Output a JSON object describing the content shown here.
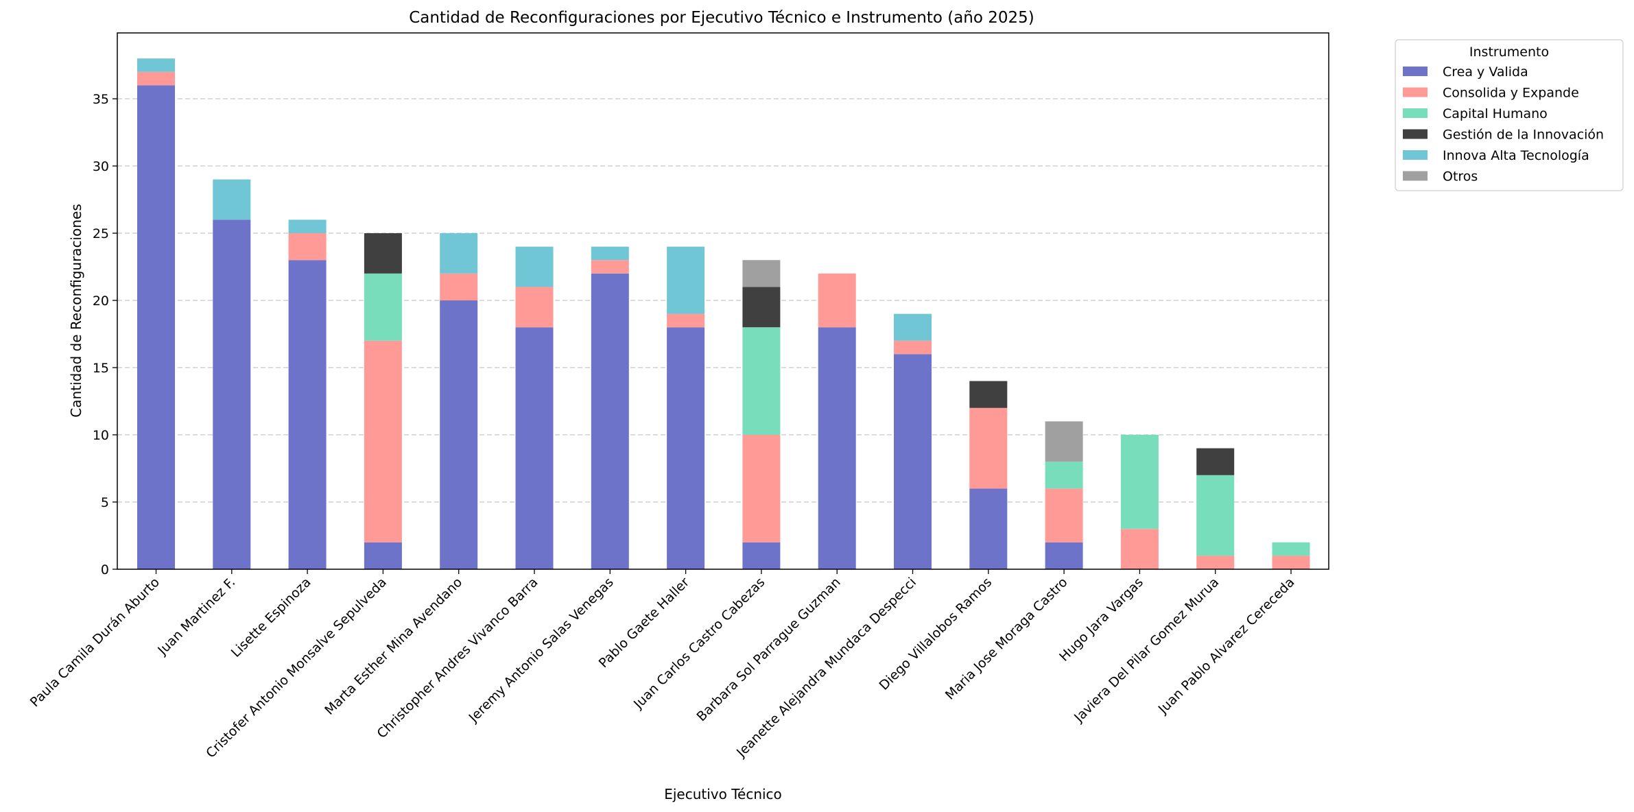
{
  "chart_data": {
    "type": "bar",
    "stacked": true,
    "title": "Cantidad de Reconfiguraciones por Ejecutivo Técnico e Instrumento (año 2025)",
    "xlabel": "Ejecutivo Técnico",
    "ylabel": "Cantidad de Reconfiguraciones",
    "ylim": [
      0,
      39.9
    ],
    "yticks": [
      0,
      5,
      10,
      15,
      20,
      25,
      30,
      35
    ],
    "grid": "y-dashed",
    "legend_title": "Instrumento",
    "legend_position": "outside-top-right",
    "categories": [
      "Paula Camila Durán Aburto",
      "Juan Martinez F.",
      "Lisette Espinoza",
      "Cristofer Antonio Monsalve Sepulveda",
      "Marta Esther Mina Avendano",
      "Christopher Andres Vivanco Barra",
      "Jeremy Antonio Salas Venegas",
      "Pablo Gaete Haller",
      "Juan Carlos Castro Cabezas",
      "Barbara Sol Parrague Guzman",
      "Jeanette Alejandra Mundaca Despecci",
      "Diego Villalobos Ramos",
      "Maria Jose Moraga Castro",
      "Hugo Jara Vargas",
      "Javiera Del Pilar Gomez Murua",
      "Juan Pablo Alvarez Cereceda"
    ],
    "series": [
      {
        "name": "Crea y Valida",
        "color": "#6c73c9",
        "values": [
          36,
          26,
          23,
          2,
          20,
          18,
          22,
          18,
          2,
          18,
          16,
          6,
          2,
          0,
          0,
          0
        ]
      },
      {
        "name": "Consolida y Expande",
        "color": "#ff9a96",
        "values": [
          1,
          0,
          2,
          15,
          2,
          3,
          1,
          1,
          8,
          4,
          1,
          6,
          4,
          3,
          1,
          1
        ]
      },
      {
        "name": "Capital Humano",
        "color": "#78ddbb",
        "values": [
          0,
          0,
          0,
          5,
          0,
          0,
          0,
          0,
          8,
          0,
          0,
          0,
          2,
          7,
          6,
          1
        ]
      },
      {
        "name": "Gestión de la Innovación",
        "color": "#404040",
        "values": [
          0,
          0,
          0,
          3,
          0,
          0,
          0,
          0,
          3,
          0,
          0,
          2,
          0,
          0,
          2,
          0
        ]
      },
      {
        "name": "Innova Alta Tecnología",
        "color": "#70c6d4",
        "values": [
          1,
          3,
          1,
          0,
          3,
          3,
          1,
          5,
          0,
          0,
          2,
          0,
          0,
          0,
          0,
          0
        ]
      },
      {
        "name": "Otros",
        "color": "#a0a0a0",
        "values": [
          0,
          0,
          0,
          0,
          0,
          0,
          0,
          0,
          2,
          0,
          0,
          0,
          3,
          0,
          0,
          0
        ]
      }
    ]
  }
}
